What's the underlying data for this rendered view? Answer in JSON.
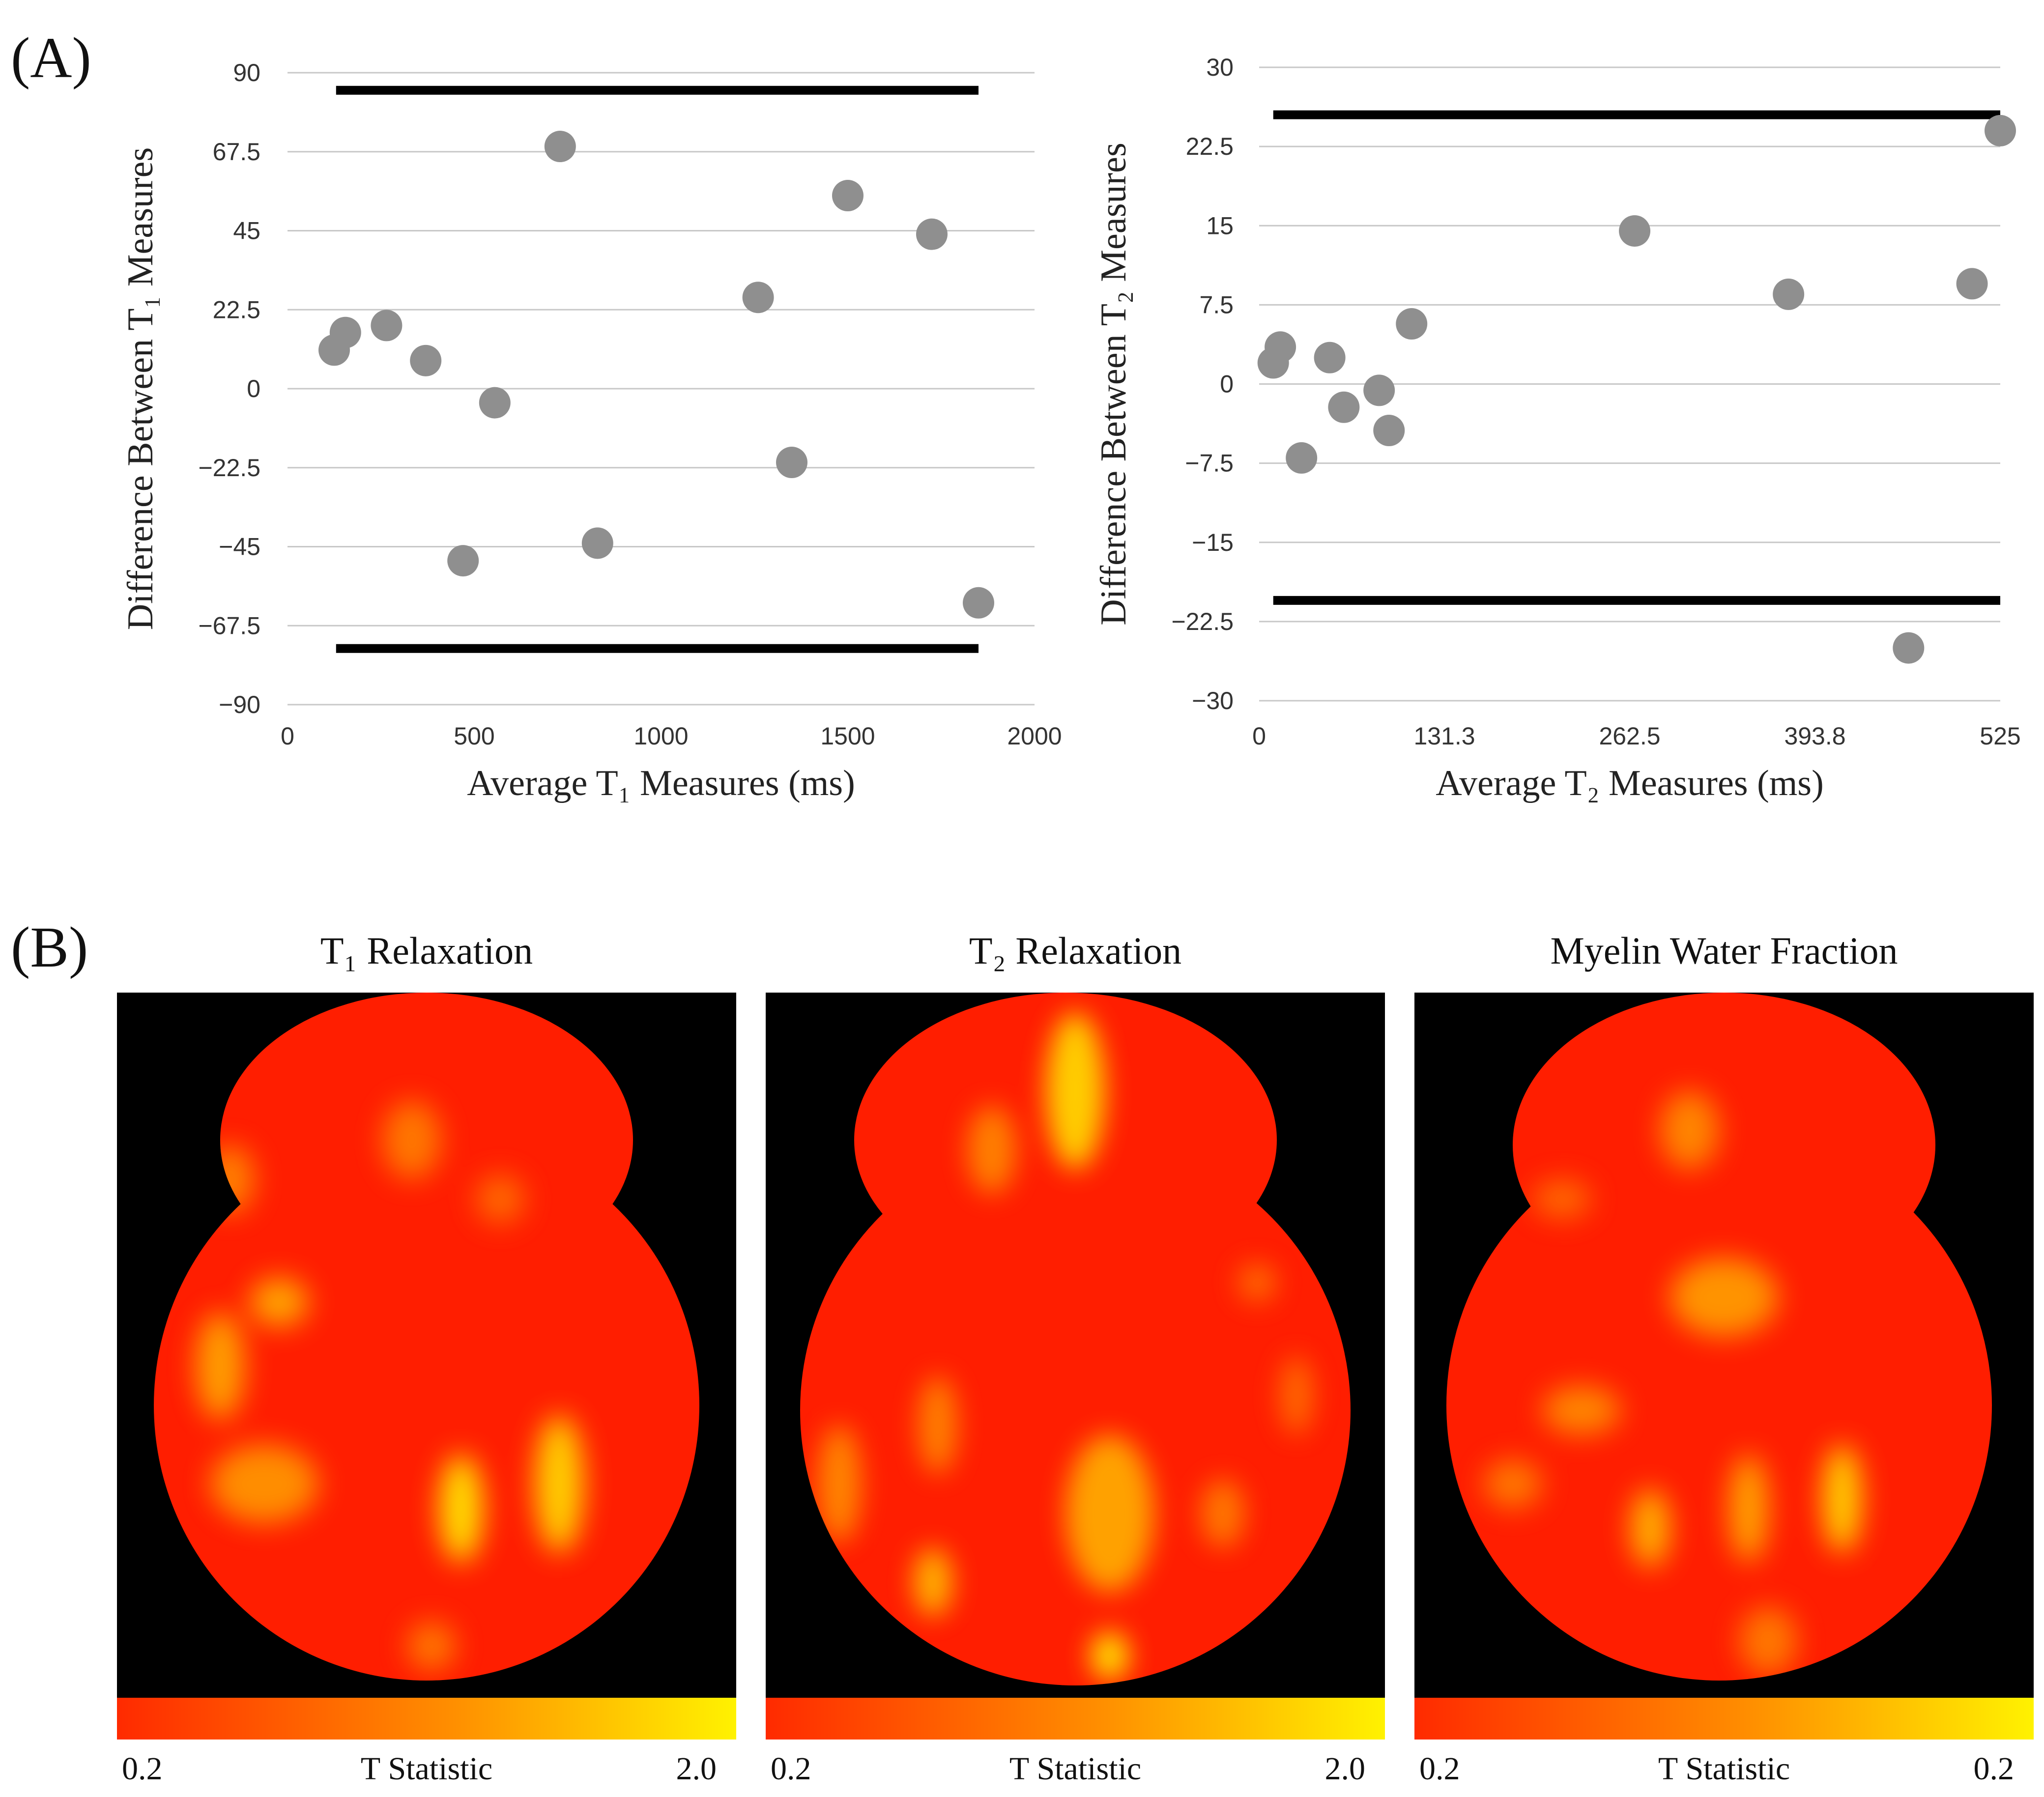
{
  "panel_a_label": "(A)",
  "panel_b_label": "(B)",
  "chart_data": [
    {
      "type": "scatter",
      "title": "",
      "xlabel": "Average T₁ Measures (ms)",
      "ylabel": "Difference Between T₁ Measures",
      "xlim": [
        0,
        2000
      ],
      "ylim": [
        -90,
        90
      ],
      "xticks": [
        "0",
        "500",
        "1000",
        "1500",
        "2000"
      ],
      "yticks": [
        "90",
        "67.5",
        "45",
        "22.5",
        "0",
        "−22.5",
        "−45",
        "−67.5",
        "−90"
      ],
      "grid": true,
      "series": [
        {
          "name": "measurements",
          "color": "#8f8f8f",
          "points": [
            [
              125,
              11
            ],
            [
              155,
              16
            ],
            [
              265,
              18
            ],
            [
              370,
              8
            ],
            [
              470,
              -49
            ],
            [
              555,
              -4
            ],
            [
              730,
              69
            ],
            [
              830,
              -44
            ],
            [
              1260,
              26
            ],
            [
              1350,
              -21
            ],
            [
              1500,
              55
            ],
            [
              1725,
              44
            ],
            [
              1850,
              -61
            ]
          ]
        }
      ],
      "limit_lines": [
        {
          "name": "upper limit of agreement",
          "y": 85,
          "x_range": [
            130,
            1850
          ]
        },
        {
          "name": "lower limit of agreement",
          "y": -74,
          "x_range": [
            130,
            1850
          ]
        }
      ]
    },
    {
      "type": "scatter",
      "title": "",
      "xlabel": "Average T₂ Measures (ms)",
      "ylabel": "Difference Between T₂ Measures",
      "xlim": [
        0,
        525
      ],
      "ylim": [
        -30,
        30
      ],
      "xticks": [
        "0",
        "131.3",
        "262.5",
        "393.8",
        "525"
      ],
      "yticks": [
        "30",
        "22.5",
        "15",
        "7.5",
        "0",
        "−7.5",
        "−15",
        "−22.5",
        "−30"
      ],
      "grid": true,
      "series": [
        {
          "name": "measurements",
          "color": "#8f8f8f",
          "points": [
            [
              10,
              2
            ],
            [
              15,
              3.5
            ],
            [
              30,
              -7
            ],
            [
              50,
              2.5
            ],
            [
              60,
              -2.2
            ],
            [
              85,
              -0.6
            ],
            [
              92,
              -4.4
            ],
            [
              108,
              5.7
            ],
            [
              266,
              14.5
            ],
            [
              375,
              8.5
            ],
            [
              460,
              -25
            ],
            [
              505,
              9.5
            ],
            [
              525,
              24
            ]
          ]
        }
      ],
      "limit_lines": [
        {
          "name": "upper limit of agreement",
          "y": 25.5,
          "x_range": [
            10,
            525
          ]
        },
        {
          "name": "lower limit of agreement",
          "y": -20.5,
          "x_range": [
            10,
            525
          ]
        }
      ]
    }
  ],
  "maps": [
    {
      "title": "T₁ Relaxation",
      "colorbar": {
        "label": "T Statistic",
        "min": "0.2",
        "max": "2.0"
      }
    },
    {
      "title": "T₂ Relaxation",
      "colorbar": {
        "label": "T Statistic",
        "min": "0.2",
        "max": "2.0"
      }
    },
    {
      "title": "Myelin Water Fraction",
      "colorbar": {
        "label": "T Statistic",
        "min": "0.2",
        "max": "0.2"
      }
    }
  ],
  "colors": {
    "map_base": "#ff1e00",
    "hot_low": "#ff2a00",
    "hot_high": "#fff200",
    "background": "#000000",
    "marker": "#8f8f8f"
  }
}
